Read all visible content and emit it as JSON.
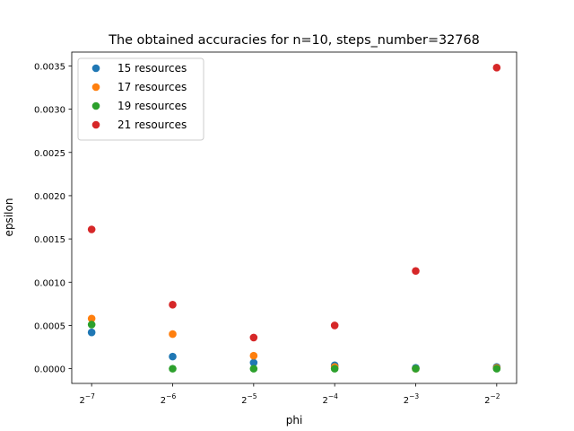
{
  "chart_data": {
    "type": "scatter",
    "title": "The obtained accuracies for  n=10, steps_number=32768",
    "xlabel": "phi",
    "ylabel": "epsilon",
    "x_scale": "log2",
    "x_ticks": [
      {
        "value": 0.0078125,
        "base": "2",
        "exp": "−7"
      },
      {
        "value": 0.015625,
        "base": "2",
        "exp": "−6"
      },
      {
        "value": 0.03125,
        "base": "2",
        "exp": "−5"
      },
      {
        "value": 0.0625,
        "base": "2",
        "exp": "−4"
      },
      {
        "value": 0.125,
        "base": "2",
        "exp": "−3"
      },
      {
        "value": 0.25,
        "base": "2",
        "exp": "−2"
      }
    ],
    "y_ticks": [
      "0.0000",
      "0.0005",
      "0.0010",
      "0.0015",
      "0.0020",
      "0.0025",
      "0.0030",
      "0.0035"
    ],
    "y_tick_values": [
      0,
      0.0005,
      0.001,
      0.0015,
      0.002,
      0.0025,
      0.003,
      0.0035
    ],
    "ylim": [
      -0.00017,
      0.00366
    ],
    "grid": false,
    "legend_position": "top-left",
    "x": [
      0.0078125,
      0.015625,
      0.03125,
      0.0625,
      0.125,
      0.25
    ],
    "series": [
      {
        "name": "15 resources",
        "color": "#1f77b4",
        "values": [
          0.00042,
          0.00014,
          7e-05,
          4e-05,
          1e-05,
          2e-05
        ]
      },
      {
        "name": "17 resources",
        "color": "#ff7f0e",
        "values": [
          0.00058,
          0.0004,
          0.00015,
          2e-05,
          0.0,
          1e-05
        ]
      },
      {
        "name": "19 resources",
        "color": "#2ca02c",
        "values": [
          0.00051,
          0.0,
          0.0,
          0.0,
          0.0,
          0.0
        ]
      },
      {
        "name": "21 resources",
        "color": "#d62728",
        "values": [
          0.00161,
          0.00074,
          0.00036,
          0.0005,
          0.00113,
          0.00348
        ]
      }
    ]
  }
}
